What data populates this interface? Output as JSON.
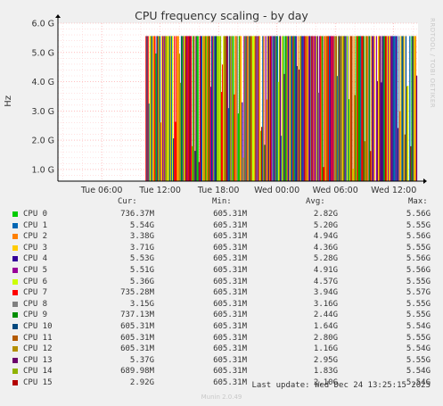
{
  "chart_data": {
    "type": "area",
    "title": "CPU frequency scaling - by day",
    "ylabel": "Hz",
    "ylim": [
      600000000,
      6000000000
    ],
    "y_ticks": [
      "1.0 G",
      "2.0 G",
      "3.0 G",
      "4.0 G",
      "5.0 G",
      "6.0 G"
    ],
    "y_tick_values": [
      1000000000,
      2000000000,
      3000000000,
      4000000000,
      5000000000,
      6000000000
    ],
    "x_ticks": [
      "Tue 06:00",
      "Tue 12:00",
      "Tue 18:00",
      "Wed 00:00",
      "Wed 06:00",
      "Wed 12:00"
    ],
    "x_tick_hours": [
      6,
      12,
      18,
      24,
      30,
      36
    ],
    "x_range_hours": [
      1.5,
      38.5
    ],
    "data_start_hours": 10.5,
    "grid": true,
    "legend_columns": [
      "Cur:",
      "Min:",
      "Avg:",
      "Max:"
    ],
    "series": [
      {
        "name": "CPU 0",
        "color": "#00cc00",
        "cur": "736.37M",
        "min": "605.31M",
        "avg": "2.82G",
        "max": "5.56G"
      },
      {
        "name": "CPU 1",
        "color": "#0066b3",
        "cur": "5.54G",
        "min": "605.31M",
        "avg": "5.20G",
        "max": "5.55G"
      },
      {
        "name": "CPU 2",
        "color": "#ff8000",
        "cur": "3.38G",
        "min": "605.31M",
        "avg": "4.94G",
        "max": "5.56G"
      },
      {
        "name": "CPU 3",
        "color": "#ffcc00",
        "cur": "3.71G",
        "min": "605.31M",
        "avg": "4.36G",
        "max": "5.55G"
      },
      {
        "name": "CPU 4",
        "color": "#330099",
        "cur": "5.53G",
        "min": "605.31M",
        "avg": "5.28G",
        "max": "5.56G"
      },
      {
        "name": "CPU 5",
        "color": "#990099",
        "cur": "5.51G",
        "min": "605.31M",
        "avg": "4.91G",
        "max": "5.56G"
      },
      {
        "name": "CPU 6",
        "color": "#ccff00",
        "cur": "5.36G",
        "min": "605.31M",
        "avg": "4.57G",
        "max": "5.55G"
      },
      {
        "name": "CPU 7",
        "color": "#ff0000",
        "cur": "735.28M",
        "min": "605.31M",
        "avg": "3.94G",
        "max": "5.57G"
      },
      {
        "name": "CPU 8",
        "color": "#808080",
        "cur": "3.15G",
        "min": "605.31M",
        "avg": "3.16G",
        "max": "5.55G"
      },
      {
        "name": "CPU 9",
        "color": "#008f00",
        "cur": "737.13M",
        "min": "605.31M",
        "avg": "2.44G",
        "max": "5.55G"
      },
      {
        "name": "CPU 10",
        "color": "#00487d",
        "cur": "605.31M",
        "min": "605.31M",
        "avg": "1.64G",
        "max": "5.54G"
      },
      {
        "name": "CPU 11",
        "color": "#b35a00",
        "cur": "605.31M",
        "min": "605.31M",
        "avg": "2.80G",
        "max": "5.55G"
      },
      {
        "name": "CPU 12",
        "color": "#b38f00",
        "cur": "605.31M",
        "min": "605.31M",
        "avg": "1.16G",
        "max": "5.54G"
      },
      {
        "name": "CPU 13",
        "color": "#6b006b",
        "cur": "5.37G",
        "min": "605.31M",
        "avg": "2.95G",
        "max": "5.55G"
      },
      {
        "name": "CPU 14",
        "color": "#8fb300",
        "cur": "689.98M",
        "min": "605.31M",
        "avg": "1.83G",
        "max": "5.54G"
      },
      {
        "name": "CPU 15",
        "color": "#b30000",
        "cur": "2.92G",
        "min": "605.31M",
        "avg": "2.10G",
        "max": "5.54G"
      }
    ]
  },
  "side_text": "RRDTOOL / TOBI OETIKER",
  "footer": {
    "last_update": "Last update: Wed Dec 24 13:25:15 2025",
    "munin_version": "Munin 2.0.49"
  }
}
